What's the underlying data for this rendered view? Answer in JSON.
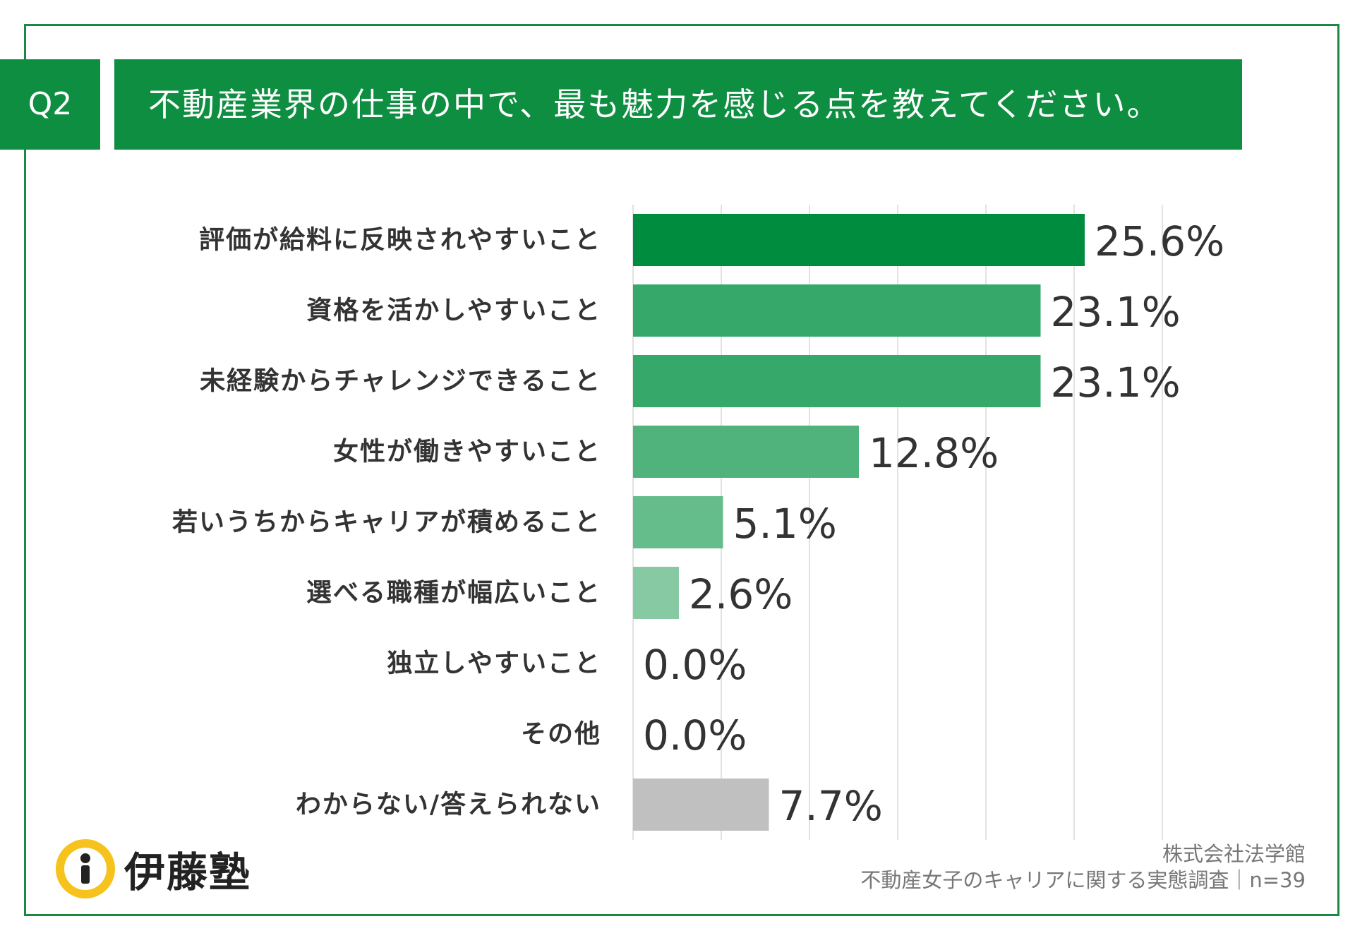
{
  "header": {
    "tag": "Q2",
    "question": "不動産業界の仕事の中で、最も魅力を感じる点を教えてください。"
  },
  "colors": {
    "frame": "#1a8a43",
    "banner": "#0e8e41",
    "grid": "#d9d9d9"
  },
  "chart_data": {
    "type": "bar",
    "orientation": "horizontal",
    "title": "不動産業界の仕事の中で、最も魅力を感じる点を教えてください。",
    "xlabel": "",
    "ylabel": "",
    "xlim": [
      0,
      30
    ],
    "grid": true,
    "categories": [
      "評価が給料に反映されやすいこと",
      "資格を活かしやすいこと",
      "未経験からチャレンジできること",
      "女性が働きやすいこと",
      "若いうちからキャリアが積めること",
      "選べる職種が幅広いこと",
      "独立しやすいこと",
      "その他",
      "わからない/答えられない"
    ],
    "values": [
      25.6,
      23.1,
      23.1,
      12.8,
      5.1,
      2.6,
      0.0,
      0.0,
      7.7
    ],
    "value_labels": [
      "25.6%",
      "23.1%",
      "23.1%",
      "12.8%",
      "5.1%",
      "2.6%",
      "0.0%",
      "0.0%",
      "7.7%"
    ],
    "bar_colors": [
      "#008c3e",
      "#35a86a",
      "#35a86a",
      "#4fb37b",
      "#66bd8c",
      "#86c9a2",
      "#9fd5b5",
      "#9fd5b5",
      "#c0c0c0"
    ]
  },
  "logo": {
    "name": "伊藤塾"
  },
  "footer": {
    "company": "株式会社法学館",
    "survey": "不動産女子のキャリアに関する実態調査｜n=39"
  }
}
